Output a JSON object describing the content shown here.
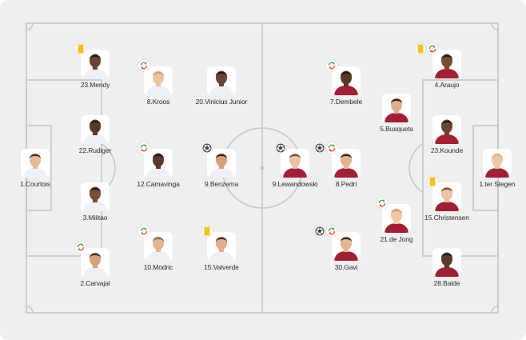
{
  "lineup": {
    "home": {
      "players": [
        {
          "name": "1.Courtois",
          "skin": "#e8b996",
          "hair": "#3a2a1e",
          "shirt": "#eef0f5",
          "badges": []
        },
        {
          "name": "23.Mendy",
          "skin": "#6b4330",
          "hair": "#1a1a1a",
          "shirt": "#eef0f5",
          "badges": [
            "yellow-card"
          ]
        },
        {
          "name": "22.Rudiger",
          "skin": "#5a3726",
          "hair": "#1a1a1a",
          "shirt": "#eef0f5",
          "badges": []
        },
        {
          "name": "3.Militao",
          "skin": "#7a4c33",
          "hair": "#1a1a1a",
          "shirt": "#eef0f5",
          "badges": []
        },
        {
          "name": "2.Carvajal",
          "skin": "#d9a07d",
          "hair": "#3b2a20",
          "shirt": "#eef0f5",
          "badges": [
            "substitution"
          ]
        },
        {
          "name": "8.Kroos",
          "skin": "#eec3a1",
          "hair": "#c9a070",
          "shirt": "#eef0f5",
          "badges": [
            "substitution"
          ]
        },
        {
          "name": "12.Camavinga",
          "skin": "#5c3828",
          "hair": "#1a1a1a",
          "shirt": "#eef0f5",
          "badges": [
            "substitution"
          ]
        },
        {
          "name": "10.Modric",
          "skin": "#e4b390",
          "hair": "#8a6a45",
          "shirt": "#eef0f5",
          "badges": [
            "substitution"
          ]
        },
        {
          "name": "20.Vinicius Junior",
          "skin": "#6b4330",
          "hair": "#1a1a1a",
          "shirt": "#eef0f5",
          "badges": []
        },
        {
          "name": "9.Benzema",
          "skin": "#d5a07c",
          "hair": "#2a1d15",
          "shirt": "#eef0f5",
          "badges": [
            "goal"
          ]
        },
        {
          "name": "15.Valverde",
          "skin": "#e2b08c",
          "hair": "#3a2a1e",
          "shirt": "#eef0f5",
          "badges": [
            "yellow-card"
          ]
        }
      ]
    },
    "away": {
      "players": [
        {
          "name": "1.ter Stegen",
          "skin": "#efc6a6",
          "hair": "#d8b98a",
          "shirt": "#a31d35",
          "badges": []
        },
        {
          "name": "4.Araujo",
          "skin": "#7a4c33",
          "hair": "#1a1a1a",
          "shirt": "#a31d35",
          "badges": [
            "substitution",
            "yellow-card"
          ]
        },
        {
          "name": "23.Kounde",
          "skin": "#6b4330",
          "hair": "#1a1a1a",
          "shirt": "#a31d35",
          "badges": []
        },
        {
          "name": "15.Christensen",
          "skin": "#ecc2a1",
          "hair": "#6e5038",
          "shirt": "#a31d35",
          "badges": [
            "yellow-card"
          ]
        },
        {
          "name": "28.Balde",
          "skin": "#5c3828",
          "hair": "#1a1a1a",
          "shirt": "#a31d35",
          "badges": []
        },
        {
          "name": "5.Busquets",
          "skin": "#dfae8a",
          "hair": "#2a1d15",
          "shirt": "#a31d35",
          "badges": []
        },
        {
          "name": "21.de Jong",
          "skin": "#efc6a6",
          "hair": "#c9a070",
          "shirt": "#a31d35",
          "badges": [
            "substitution"
          ]
        },
        {
          "name": "7.Dembele",
          "skin": "#5a3726",
          "hair": "#1a1a1a",
          "shirt": "#a31d35",
          "badges": [
            "substitution"
          ]
        },
        {
          "name": "8.Pedri",
          "skin": "#e4b390",
          "hair": "#2a1d15",
          "shirt": "#a31d35",
          "badges": [
            "substitution",
            "goal"
          ]
        },
        {
          "name": "30.Gavi",
          "skin": "#e4b390",
          "hair": "#2a1d15",
          "shirt": "#a31d35",
          "badges": [
            "substitution",
            "goal"
          ]
        },
        {
          "name": "9.Lewandowski",
          "skin": "#ecc2a1",
          "hair": "#6e5038",
          "shirt": "#a31d35",
          "badges": [
            "goal"
          ]
        }
      ]
    }
  },
  "colors": {
    "pitch_background": "#efefef",
    "pitch_lines": "#c4c7c5",
    "yellow_card": "#f2c417",
    "substitution_in": "#4caf50",
    "substitution_out": "#e5534b",
    "label_text": "#2b2b2b"
  }
}
